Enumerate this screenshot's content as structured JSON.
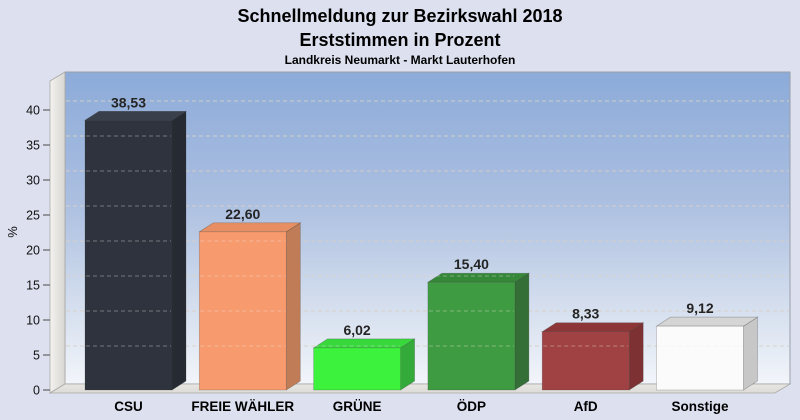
{
  "header": {
    "title": "Schnellmeldung zur Bezirkswahl 2018",
    "subtitle": "Erststimmen in Prozent",
    "region": "Landkreis Neumarkt - Markt Lauterhofen"
  },
  "chart_data": {
    "type": "bar",
    "projection": "3d-oblique",
    "title": "Schnellmeldung zur Bezirkswahl 2018",
    "subtitle": "Erststimmen in Prozent",
    "region_note": "Landkreis Neumarkt - Markt Lauterhofen",
    "ylabel": "%",
    "xlabel": "",
    "ylim": [
      0,
      44
    ],
    "yticks": [
      0,
      5,
      10,
      15,
      20,
      25,
      30,
      35,
      40
    ],
    "grid": true,
    "grid_style": "dashed",
    "legend": false,
    "categories": [
      "CSU",
      "FREIE WÄHLER",
      "GRÜNE",
      "ÖDP",
      "AfD",
      "Sonstige"
    ],
    "values": [
      38.53,
      22.6,
      6.02,
      15.4,
      8.33,
      9.12
    ],
    "value_labels": [
      "38,53",
      "22,60",
      "6,02",
      "15,40",
      "8,33",
      "9,12"
    ],
    "bar_colors": [
      {
        "name": "CSU",
        "front": "#2e333d",
        "top": "#3a404b",
        "side": "#262a32"
      },
      {
        "name": "FREIE WÄHLER",
        "front": "#f79a6d",
        "top": "#e78f62",
        "side": "#bf7c56"
      },
      {
        "name": "GRÜNE",
        "front": "#3df23d",
        "top": "#38d83d",
        "side": "#34aa3a"
      },
      {
        "name": "ÖDP",
        "front": "#3f9b41",
        "top": "#368839",
        "side": "#336f36"
      },
      {
        "name": "AfD",
        "front": "#a04243",
        "top": "#8d3638",
        "side": "#7d3133"
      },
      {
        "name": "Sonstige",
        "front": "#fbfbfb",
        "top": "#d5d5d5",
        "side": "#c7c7c7"
      }
    ],
    "colors": {
      "page_bg": "#dde1ef",
      "plot_gradient_top": "#8cabd9",
      "plot_gradient_bottom": "#f2f5fa",
      "wall": "#e6e5e1",
      "floor": "#e3e2de",
      "grid": "#d6d1c8",
      "value_label_text": "#242424",
      "axis_text": "#111111",
      "plot_border": "#99a0a8"
    }
  }
}
